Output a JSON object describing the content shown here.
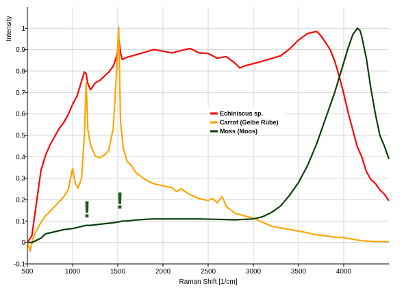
{
  "chart_data": {
    "type": "line",
    "xlabel": "Raman Shift [1/cm]",
    "ylabel": "Intensity",
    "xlim": [
      500,
      4500
    ],
    "ylim": [
      -0.1,
      1.1
    ],
    "x_ticks": [
      500,
      1000,
      1500,
      2000,
      2500,
      3000,
      3500,
      4000
    ],
    "y_ticks": [
      -0.1,
      0,
      0.1,
      0.2,
      0.3,
      0.4,
      0.5,
      0.6,
      0.7,
      0.8,
      0.9,
      1
    ],
    "x_tick_labels": [
      "500",
      "1000",
      "1500",
      "2000",
      "2500",
      "3000",
      "3500",
      "4000"
    ],
    "y_tick_labels": [
      "-0.1",
      "0",
      "0.1",
      "0.2",
      "0.3",
      "0.4",
      "0.5",
      "0.6",
      "0.7",
      "0.8",
      "0.9",
      "1"
    ],
    "grid": true,
    "legend_position": "center-right",
    "series": [
      {
        "name": "Echiniscus sp.",
        "color": "#ff0000",
        "x": [
          500,
          550,
          600,
          650,
          700,
          750,
          800,
          850,
          900,
          950,
          1000,
          1050,
          1100,
          1130,
          1150,
          1170,
          1200,
          1250,
          1300,
          1350,
          1400,
          1450,
          1480,
          1500,
          1510,
          1530,
          1550,
          1600,
          1700,
          1800,
          1900,
          2000,
          2100,
          2200,
          2300,
          2400,
          2500,
          2600,
          2700,
          2800,
          2850,
          2900,
          3000,
          3100,
          3200,
          3300,
          3400,
          3500,
          3600,
          3700,
          3750,
          3800,
          3850,
          3900,
          3950,
          4000,
          4050,
          4100,
          4150,
          4200,
          4250,
          4300,
          4350,
          4400,
          4450,
          4500
        ],
        "y": [
          0,
          0.03,
          0.18,
          0.33,
          0.4,
          0.45,
          0.49,
          0.53,
          0.56,
          0.6,
          0.65,
          0.69,
          0.76,
          0.8,
          0.79,
          0.74,
          0.71,
          0.74,
          0.75,
          0.77,
          0.79,
          0.82,
          0.86,
          0.9,
          0.96,
          0.89,
          0.86,
          0.87,
          0.88,
          0.89,
          0.9,
          0.89,
          0.88,
          0.89,
          0.9,
          0.88,
          0.88,
          0.86,
          0.87,
          0.84,
          0.82,
          0.83,
          0.84,
          0.85,
          0.86,
          0.87,
          0.9,
          0.94,
          0.97,
          0.98,
          0.96,
          0.93,
          0.9,
          0.85,
          0.78,
          0.7,
          0.61,
          0.53,
          0.45,
          0.4,
          0.33,
          0.29,
          0.27,
          0.24,
          0.22,
          0.19
        ]
      },
      {
        "name": "Carrot (Gelbe Rübe)",
        "color": "#ffa500",
        "x": [
          500,
          530,
          560,
          600,
          650,
          700,
          750,
          800,
          850,
          900,
          950,
          980,
          1000,
          1030,
          1060,
          1100,
          1130,
          1150,
          1170,
          1200,
          1250,
          1300,
          1350,
          1400,
          1450,
          1480,
          1500,
          1510,
          1530,
          1560,
          1600,
          1650,
          1700,
          1800,
          1900,
          2000,
          2100,
          2150,
          2200,
          2300,
          2400,
          2500,
          2550,
          2600,
          2650,
          2670,
          2700,
          2800,
          2900,
          3000,
          3100,
          3200,
          3300,
          3400,
          3500,
          3600,
          3700,
          3800,
          3900,
          4000,
          4100,
          4200,
          4300,
          4400,
          4500
        ],
        "y": [
          0,
          -0.04,
          0.02,
          0.06,
          0.1,
          0.13,
          0.15,
          0.17,
          0.19,
          0.21,
          0.24,
          0.3,
          0.34,
          0.27,
          0.25,
          0.3,
          0.5,
          0.75,
          0.53,
          0.46,
          0.41,
          0.4,
          0.41,
          0.43,
          0.53,
          0.75,
          0.92,
          1.0,
          0.56,
          0.44,
          0.38,
          0.36,
          0.33,
          0.3,
          0.28,
          0.27,
          0.26,
          0.24,
          0.25,
          0.22,
          0.2,
          0.19,
          0.2,
          0.18,
          0.21,
          0.2,
          0.17,
          0.14,
          0.13,
          0.12,
          0.1,
          0.08,
          0.07,
          0.06,
          0.05,
          0.04,
          0.03,
          0.025,
          0.02,
          0.02,
          0.015,
          0.01,
          0.01,
          0.01,
          0.01
        ]
      },
      {
        "name": "Moss (Moos)",
        "color": "#0a3d0a",
        "x": [
          500,
          550,
          600,
          650,
          700,
          800,
          900,
          1000,
          1100,
          1150,
          1200,
          1300,
          1400,
          1500,
          1550,
          1600,
          1700,
          1800,
          1900,
          2000,
          2200,
          2400,
          2600,
          2800,
          2900,
          3000,
          3100,
          3200,
          3300,
          3400,
          3500,
          3600,
          3700,
          3800,
          3900,
          4000,
          4050,
          4100,
          4150,
          4180,
          4200,
          4250,
          4300,
          4350,
          4400,
          4450,
          4500
        ],
        "y": [
          0,
          0.0,
          0.01,
          0.02,
          0.04,
          0.05,
          0.06,
          0.065,
          0.075,
          0.08,
          0.08,
          0.085,
          0.09,
          0.095,
          0.1,
          0.1,
          0.105,
          0.108,
          0.11,
          0.11,
          0.11,
          0.11,
          0.108,
          0.106,
          0.108,
          0.11,
          0.12,
          0.14,
          0.17,
          0.22,
          0.28,
          0.36,
          0.46,
          0.58,
          0.7,
          0.84,
          0.91,
          0.97,
          1.0,
          0.99,
          0.96,
          0.86,
          0.72,
          0.6,
          0.5,
          0.45,
          0.39
        ]
      }
    ],
    "annotations": [
      "!",
      "!"
    ]
  }
}
